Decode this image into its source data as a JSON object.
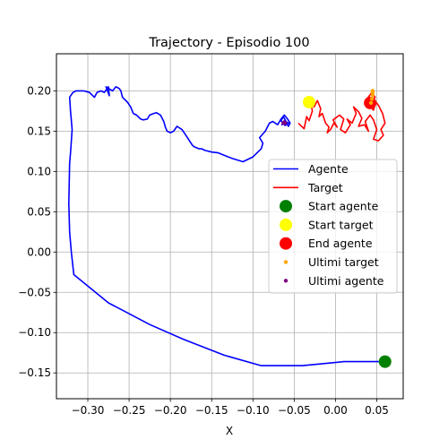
{
  "chart_data": {
    "type": "line",
    "title": "Trajectory - Episodio 100",
    "xlabel": "X",
    "ylabel": "Y",
    "xlim": [
      -0.338,
      0.082
    ],
    "ylim": [
      -0.182,
      0.246
    ],
    "xticks": [
      -0.3,
      -0.25,
      -0.2,
      -0.15,
      -0.1,
      -0.05,
      0.0,
      0.05
    ],
    "xtick_labels": [
      "−0.30",
      "−0.25",
      "−0.20",
      "−0.15",
      "−0.10",
      "−0.05",
      "0.00",
      "0.05"
    ],
    "yticks": [
      -0.15,
      -0.1,
      -0.05,
      0.0,
      0.05,
      0.1,
      0.15,
      0.2
    ],
    "ytick_labels": [
      "−0.15",
      "−0.10",
      "−0.05",
      "0.00",
      "0.05",
      "0.10",
      "0.15",
      "0.20"
    ],
    "grid": true,
    "legend_position": "center-right",
    "series": [
      {
        "name": "Agente",
        "kind": "line",
        "color": "#0000ff",
        "x": [
          0.06,
          0.04,
          0.01,
          -0.04,
          -0.09,
          -0.135,
          -0.185,
          -0.225,
          -0.275,
          -0.317,
          -0.32,
          -0.322,
          -0.323,
          -0.322,
          -0.321,
          -0.32,
          -0.319,
          -0.321,
          -0.322,
          -0.318,
          -0.314,
          -0.305,
          -0.298,
          -0.292,
          -0.289,
          -0.284,
          -0.28,
          -0.275,
          -0.274,
          -0.278,
          -0.27,
          -0.266,
          -0.262,
          -0.26,
          -0.258,
          -0.252,
          -0.248,
          -0.245,
          -0.241,
          -0.236,
          -0.233,
          -0.228,
          -0.225,
          -0.22,
          -0.217,
          -0.212,
          -0.208,
          -0.206,
          -0.204,
          -0.2,
          -0.196,
          -0.192,
          -0.186,
          -0.18,
          -0.177,
          -0.173,
          -0.17,
          -0.165,
          -0.162,
          -0.158,
          -0.15,
          -0.142,
          -0.135,
          -0.125,
          -0.112,
          -0.1,
          -0.095,
          -0.09,
          -0.088,
          -0.092,
          -0.085,
          -0.08,
          -0.076,
          -0.07,
          -0.066,
          -0.062,
          -0.058,
          -0.055,
          -0.057,
          -0.06,
          -0.063,
          -0.066,
          -0.061,
          -0.057,
          -0.062,
          -0.065,
          -0.061,
          -0.063
        ],
        "y": [
          -0.136,
          -0.136,
          -0.136,
          -0.141,
          -0.141,
          -0.128,
          -0.108,
          -0.09,
          -0.063,
          -0.028,
          0.0,
          0.025,
          0.06,
          0.11,
          0.123,
          0.137,
          0.152,
          0.175,
          0.192,
          0.198,
          0.2,
          0.2,
          0.198,
          0.192,
          0.198,
          0.2,
          0.198,
          0.205,
          0.194,
          0.205,
          0.2,
          0.205,
          0.203,
          0.2,
          0.192,
          0.186,
          0.18,
          0.172,
          0.17,
          0.165,
          0.164,
          0.165,
          0.17,
          0.172,
          0.173,
          0.17,
          0.162,
          0.155,
          0.15,
          0.148,
          0.15,
          0.156,
          0.152,
          0.143,
          0.138,
          0.132,
          0.13,
          0.128,
          0.128,
          0.126,
          0.124,
          0.123,
          0.12,
          0.116,
          0.112,
          0.118,
          0.123,
          0.128,
          0.135,
          0.142,
          0.15,
          0.16,
          0.162,
          0.158,
          0.165,
          0.17,
          0.165,
          0.16,
          0.156,
          0.162,
          0.168,
          0.163,
          0.157,
          0.16,
          0.163,
          0.158,
          0.161,
          0.16
        ]
      },
      {
        "name": "Target",
        "kind": "line",
        "color": "#ff0000",
        "x": [
          -0.045,
          -0.038,
          -0.035,
          -0.032,
          -0.028,
          -0.03,
          -0.026,
          -0.022,
          -0.018,
          -0.02,
          -0.016,
          -0.012,
          -0.008,
          -0.01,
          -0.006,
          -0.002,
          0.002,
          -0.003,
          0.005,
          0.01,
          0.006,
          0.012,
          0.018,
          0.014,
          0.02,
          0.025,
          0.022,
          0.028,
          0.032,
          0.028,
          0.035,
          0.04,
          0.036,
          0.042,
          0.046,
          0.05,
          0.046,
          0.052,
          0.058,
          0.055,
          0.06,
          0.057,
          0.052,
          0.049,
          0.046,
          0.043,
          0.04,
          0.038,
          0.044,
          0.048,
          0.042,
          0.045
        ],
        "y": [
          0.16,
          0.153,
          0.168,
          0.163,
          0.175,
          0.186,
          0.18,
          0.188,
          0.178,
          0.168,
          0.172,
          0.16,
          0.155,
          0.148,
          0.152,
          0.16,
          0.155,
          0.164,
          0.17,
          0.165,
          0.152,
          0.148,
          0.158,
          0.165,
          0.16,
          0.172,
          0.18,
          0.174,
          0.166,
          0.156,
          0.158,
          0.15,
          0.162,
          0.17,
          0.164,
          0.152,
          0.14,
          0.138,
          0.145,
          0.152,
          0.16,
          0.172,
          0.182,
          0.186,
          0.176,
          0.18,
          0.185,
          0.19,
          0.198,
          0.192,
          0.186,
          0.188
        ]
      }
    ],
    "markers": [
      {
        "name": "Start agente",
        "color": "#008000",
        "size": "large",
        "x": 0.06,
        "y": -0.136
      },
      {
        "name": "Start target",
        "color": "#ffff00",
        "size": "large",
        "x": -0.032,
        "y": 0.186
      },
      {
        "name": "End agente",
        "color": "#ff0000",
        "size": "large",
        "x": 0.042,
        "y": 0.185
      }
    ],
    "scatter_series": [
      {
        "name": "Ultimi target",
        "color": "#ffa500",
        "size": "small",
        "x": [
          0.043,
          0.044,
          0.045,
          0.045,
          0.045
        ],
        "y": [
          0.185,
          0.19,
          0.195,
          0.198,
          0.2
        ]
      },
      {
        "name": "Ultimi agente",
        "color": "#800080",
        "size": "small",
        "x": [
          -0.061,
          -0.062,
          -0.063
        ],
        "y": [
          0.16,
          0.161,
          0.16
        ]
      }
    ]
  }
}
